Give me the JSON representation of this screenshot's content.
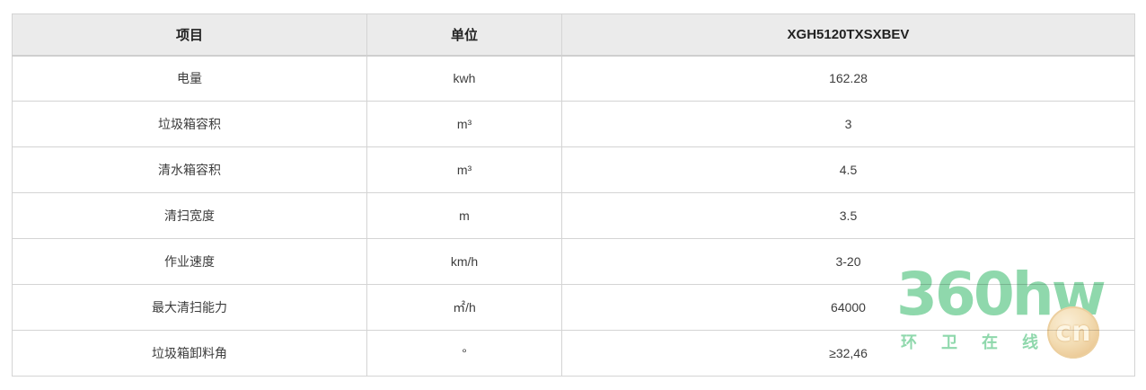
{
  "table": {
    "columns": [
      {
        "label": "项目"
      },
      {
        "label": "单位"
      },
      {
        "label": "XGH5120TXSXBEV"
      }
    ],
    "rows": [
      {
        "item": "电量",
        "unit": "kwh",
        "value": "162.28"
      },
      {
        "item": "垃圾箱容积",
        "unit": "m³",
        "value": "3"
      },
      {
        "item": "清水箱容积",
        "unit": "m³",
        "value": "4.5"
      },
      {
        "item": "清扫宽度",
        "unit": "m",
        "value": "3.5"
      },
      {
        "item": "作业速度",
        "unit": "km/h",
        "value": "3-20"
      },
      {
        "item": "最大清扫能力",
        "unit": "㎡/h",
        "value": "64000"
      },
      {
        "item": "垃圾箱卸料角",
        "unit": "°",
        "value": "≥32,46"
      }
    ]
  },
  "watermark": {
    "brand": "360hw",
    "subtitle": "环 卫 在 线 网",
    "badge": "cn",
    "green_color": "#8fd8ac",
    "gold_color": "#e5b97e"
  }
}
